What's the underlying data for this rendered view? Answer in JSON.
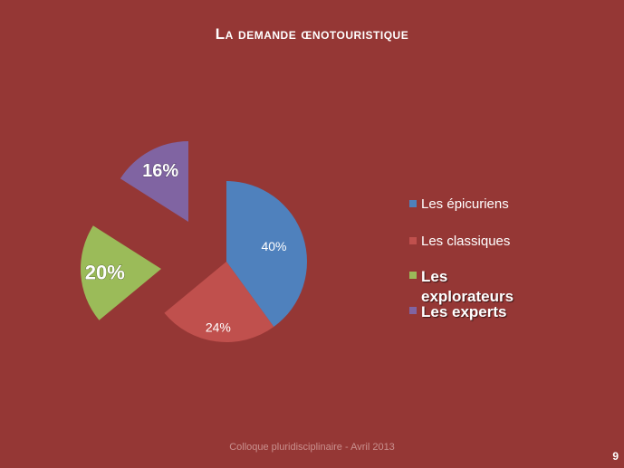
{
  "title": "La demande œnotouristique",
  "chart_data": {
    "type": "pie",
    "title": "La demande œnotouristique",
    "categories": [
      "Les épicuriens",
      "Les classiques",
      "Les explorateurs",
      "Les experts"
    ],
    "values": [
      40,
      24,
      20,
      16
    ],
    "labels": [
      "40%",
      "24%",
      "20%",
      "16%"
    ],
    "colors": [
      "#4f81bd",
      "#c0504d",
      "#9bbb59",
      "#8064a2"
    ],
    "exploded": [
      false,
      false,
      true,
      true
    ],
    "legend_position": "right"
  },
  "legend": {
    "items": [
      {
        "label": "Les épicuriens",
        "color": "#4f81bd"
      },
      {
        "label": "Les classiques",
        "color": "#c0504d"
      },
      {
        "label": "Les\nexplorateurs",
        "color": "#9bbb59"
      },
      {
        "label": "Les experts",
        "color": "#8064a2"
      }
    ]
  },
  "footer": "Colloque pluridisciplinaire - Avril 2013",
  "page_number": "9"
}
